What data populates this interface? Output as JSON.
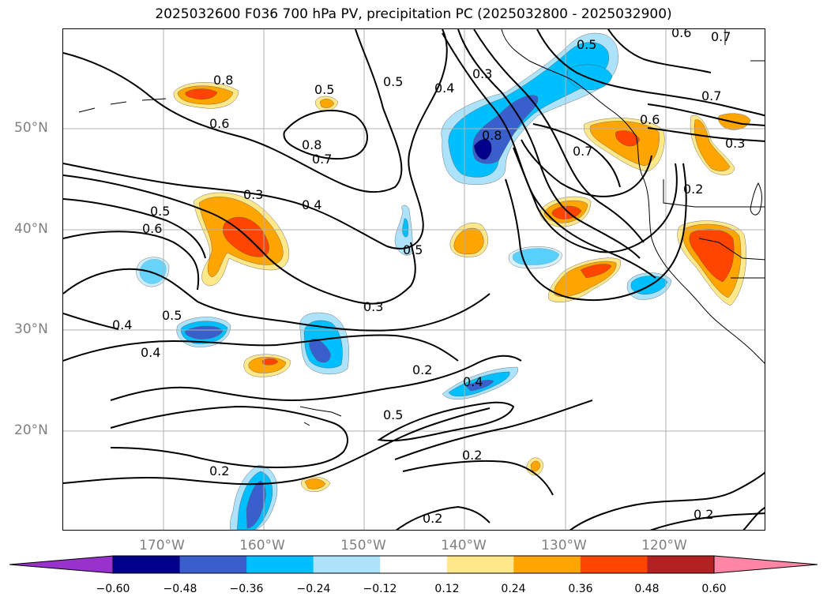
{
  "title": "2025032600 F036 700 hPa PV, precipitation PC (2025032800 - 2025032900)",
  "lat_labels": [
    "50°N",
    "40°N",
    "30°N",
    "20°N"
  ],
  "lon_labels": [
    "170°W",
    "160°W",
    "150°W",
    "140°W",
    "130°W",
    "120°W"
  ],
  "contour_labels": [
    "0.8",
    "0.5",
    "0.6",
    "0.4",
    "0.3",
    "0.5",
    "0.5",
    "0.7",
    "0.6",
    "0.8",
    "0.7",
    "0.8",
    "0.7",
    "0.6",
    "0.3",
    "0.7",
    "0.2",
    "0.3",
    "0.4",
    "0.5",
    "0.6",
    "0.5",
    "0.4",
    "0.5",
    "0.4",
    "0.2",
    "0.4",
    "0.5",
    "0.2",
    "0.2",
    "0.2",
    "0.2",
    "0.3"
  ],
  "colorbar": {
    "ticks": [
      "−0.60",
      "−0.48",
      "−0.36",
      "−0.24",
      "−0.12",
      "0.12",
      "0.24",
      "0.36",
      "0.48",
      "0.60"
    ],
    "colors": [
      "#9932CC",
      "#00008B",
      "#3A5FCD",
      "#00BFFF",
      "#ADE3FA",
      "#FFFFFF",
      "#FFE88A",
      "#FFA500",
      "#FF4500",
      "#B22222",
      "#FF85A5"
    ]
  },
  "fill_colors": {
    "light_blue": "#ADE3FA",
    "blue": "#00BFFF",
    "mid_blue": "#3A5FCD",
    "dark_blue": "#00008B",
    "yellow": "#FFE88A",
    "orange": "#FFA500",
    "red_orange": "#FF4500"
  }
}
